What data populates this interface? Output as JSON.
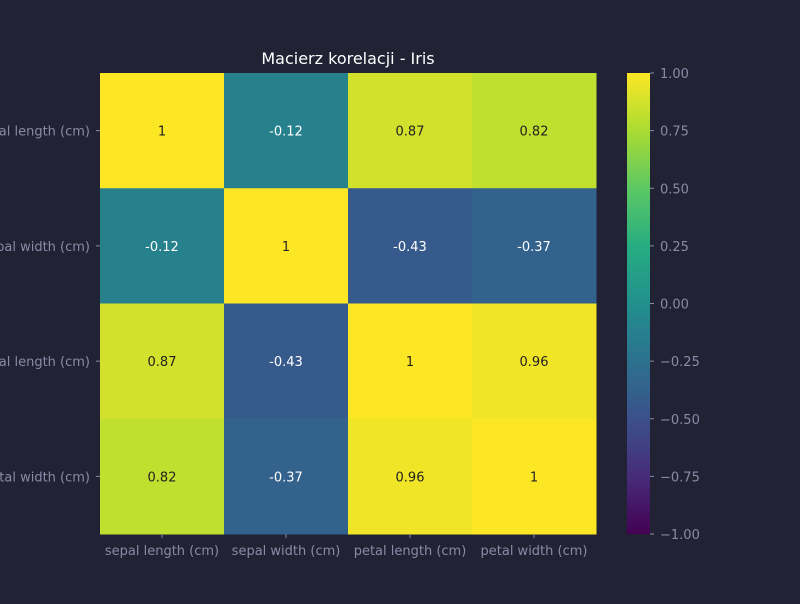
{
  "chart_data": {
    "type": "heatmap",
    "title": "Macierz korelacji - Iris",
    "xlabel": "",
    "ylabel": "",
    "row_labels": [
      "sepal length (cm)",
      "sepal width (cm)",
      "petal length (cm)",
      "petal width (cm)"
    ],
    "col_labels": [
      "sepal length (cm)",
      "sepal width (cm)",
      "petal length (cm)",
      "petal width (cm)"
    ],
    "values": [
      [
        1.0,
        -0.12,
        0.87,
        0.82
      ],
      [
        -0.12,
        1.0,
        -0.43,
        -0.37
      ],
      [
        0.87,
        -0.43,
        1.0,
        0.96
      ],
      [
        0.82,
        -0.37,
        0.96,
        1.0
      ]
    ],
    "cell_labels": [
      [
        "1",
        "-0.12",
        "0.87",
        "0.82"
      ],
      [
        "-0.12",
        "1",
        "-0.43",
        "-0.37"
      ],
      [
        "0.87",
        "-0.43",
        "1",
        "0.96"
      ],
      [
        "0.82",
        "-0.37",
        "0.96",
        "1"
      ]
    ],
    "vmin": -1.0,
    "vmax": 1.0,
    "colormap": "viridis",
    "colorbar_ticks": [
      "1.00",
      "0.75",
      "0.50",
      "0.25",
      "0.00",
      "−0.25",
      "−0.50",
      "−0.75",
      "−1.00"
    ],
    "colorbar_tick_values": [
      1.0,
      0.75,
      0.5,
      0.25,
      0.0,
      -0.25,
      -0.5,
      -0.75,
      -1.0
    ],
    "grid": false,
    "legend": "colorbar-right"
  },
  "colors": {
    "background": "#222235",
    "title_text": "#ffffff",
    "tick_text": "#8a8aa6",
    "dark_cell_text": "#ffffff",
    "light_cell_text": "#222222"
  }
}
